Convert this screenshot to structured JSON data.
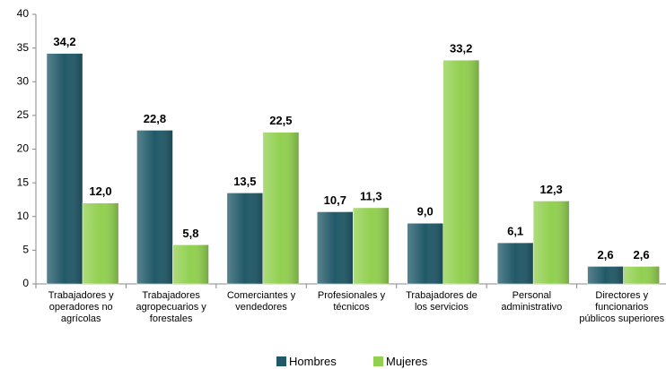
{
  "chart_data": {
    "type": "bar",
    "categories": [
      "Trabajadores y operadores no agrícolas",
      "Trabajadores agropecuarios y forestales",
      "Comerciantes y vendedores",
      "Profesionales y técnicos",
      "Trabajadores de los servicios",
      "Personal administrativo",
      "Directores y funcionarios públicos superiores"
    ],
    "series": [
      {
        "name": "Hombres",
        "color": "#215968",
        "values": [
          34.2,
          22.8,
          13.5,
          10.7,
          9.0,
          6.1,
          2.6
        ],
        "value_labels": [
          "34,2",
          "22,8",
          "13,5",
          "10,7",
          "9,0",
          "6,1",
          "2,6"
        ]
      },
      {
        "name": "Mujeres",
        "color": "#92d050",
        "values": [
          12.0,
          5.8,
          22.5,
          11.3,
          33.2,
          12.3,
          2.6
        ],
        "value_labels": [
          "12,0",
          "5,8",
          "22,5",
          "11,3",
          "33,2",
          "12,3",
          "2,6"
        ]
      }
    ],
    "ylim": [
      0,
      40
    ],
    "yticks": [
      0,
      5,
      10,
      15,
      20,
      25,
      30,
      35,
      40
    ],
    "legend": "bottom"
  }
}
